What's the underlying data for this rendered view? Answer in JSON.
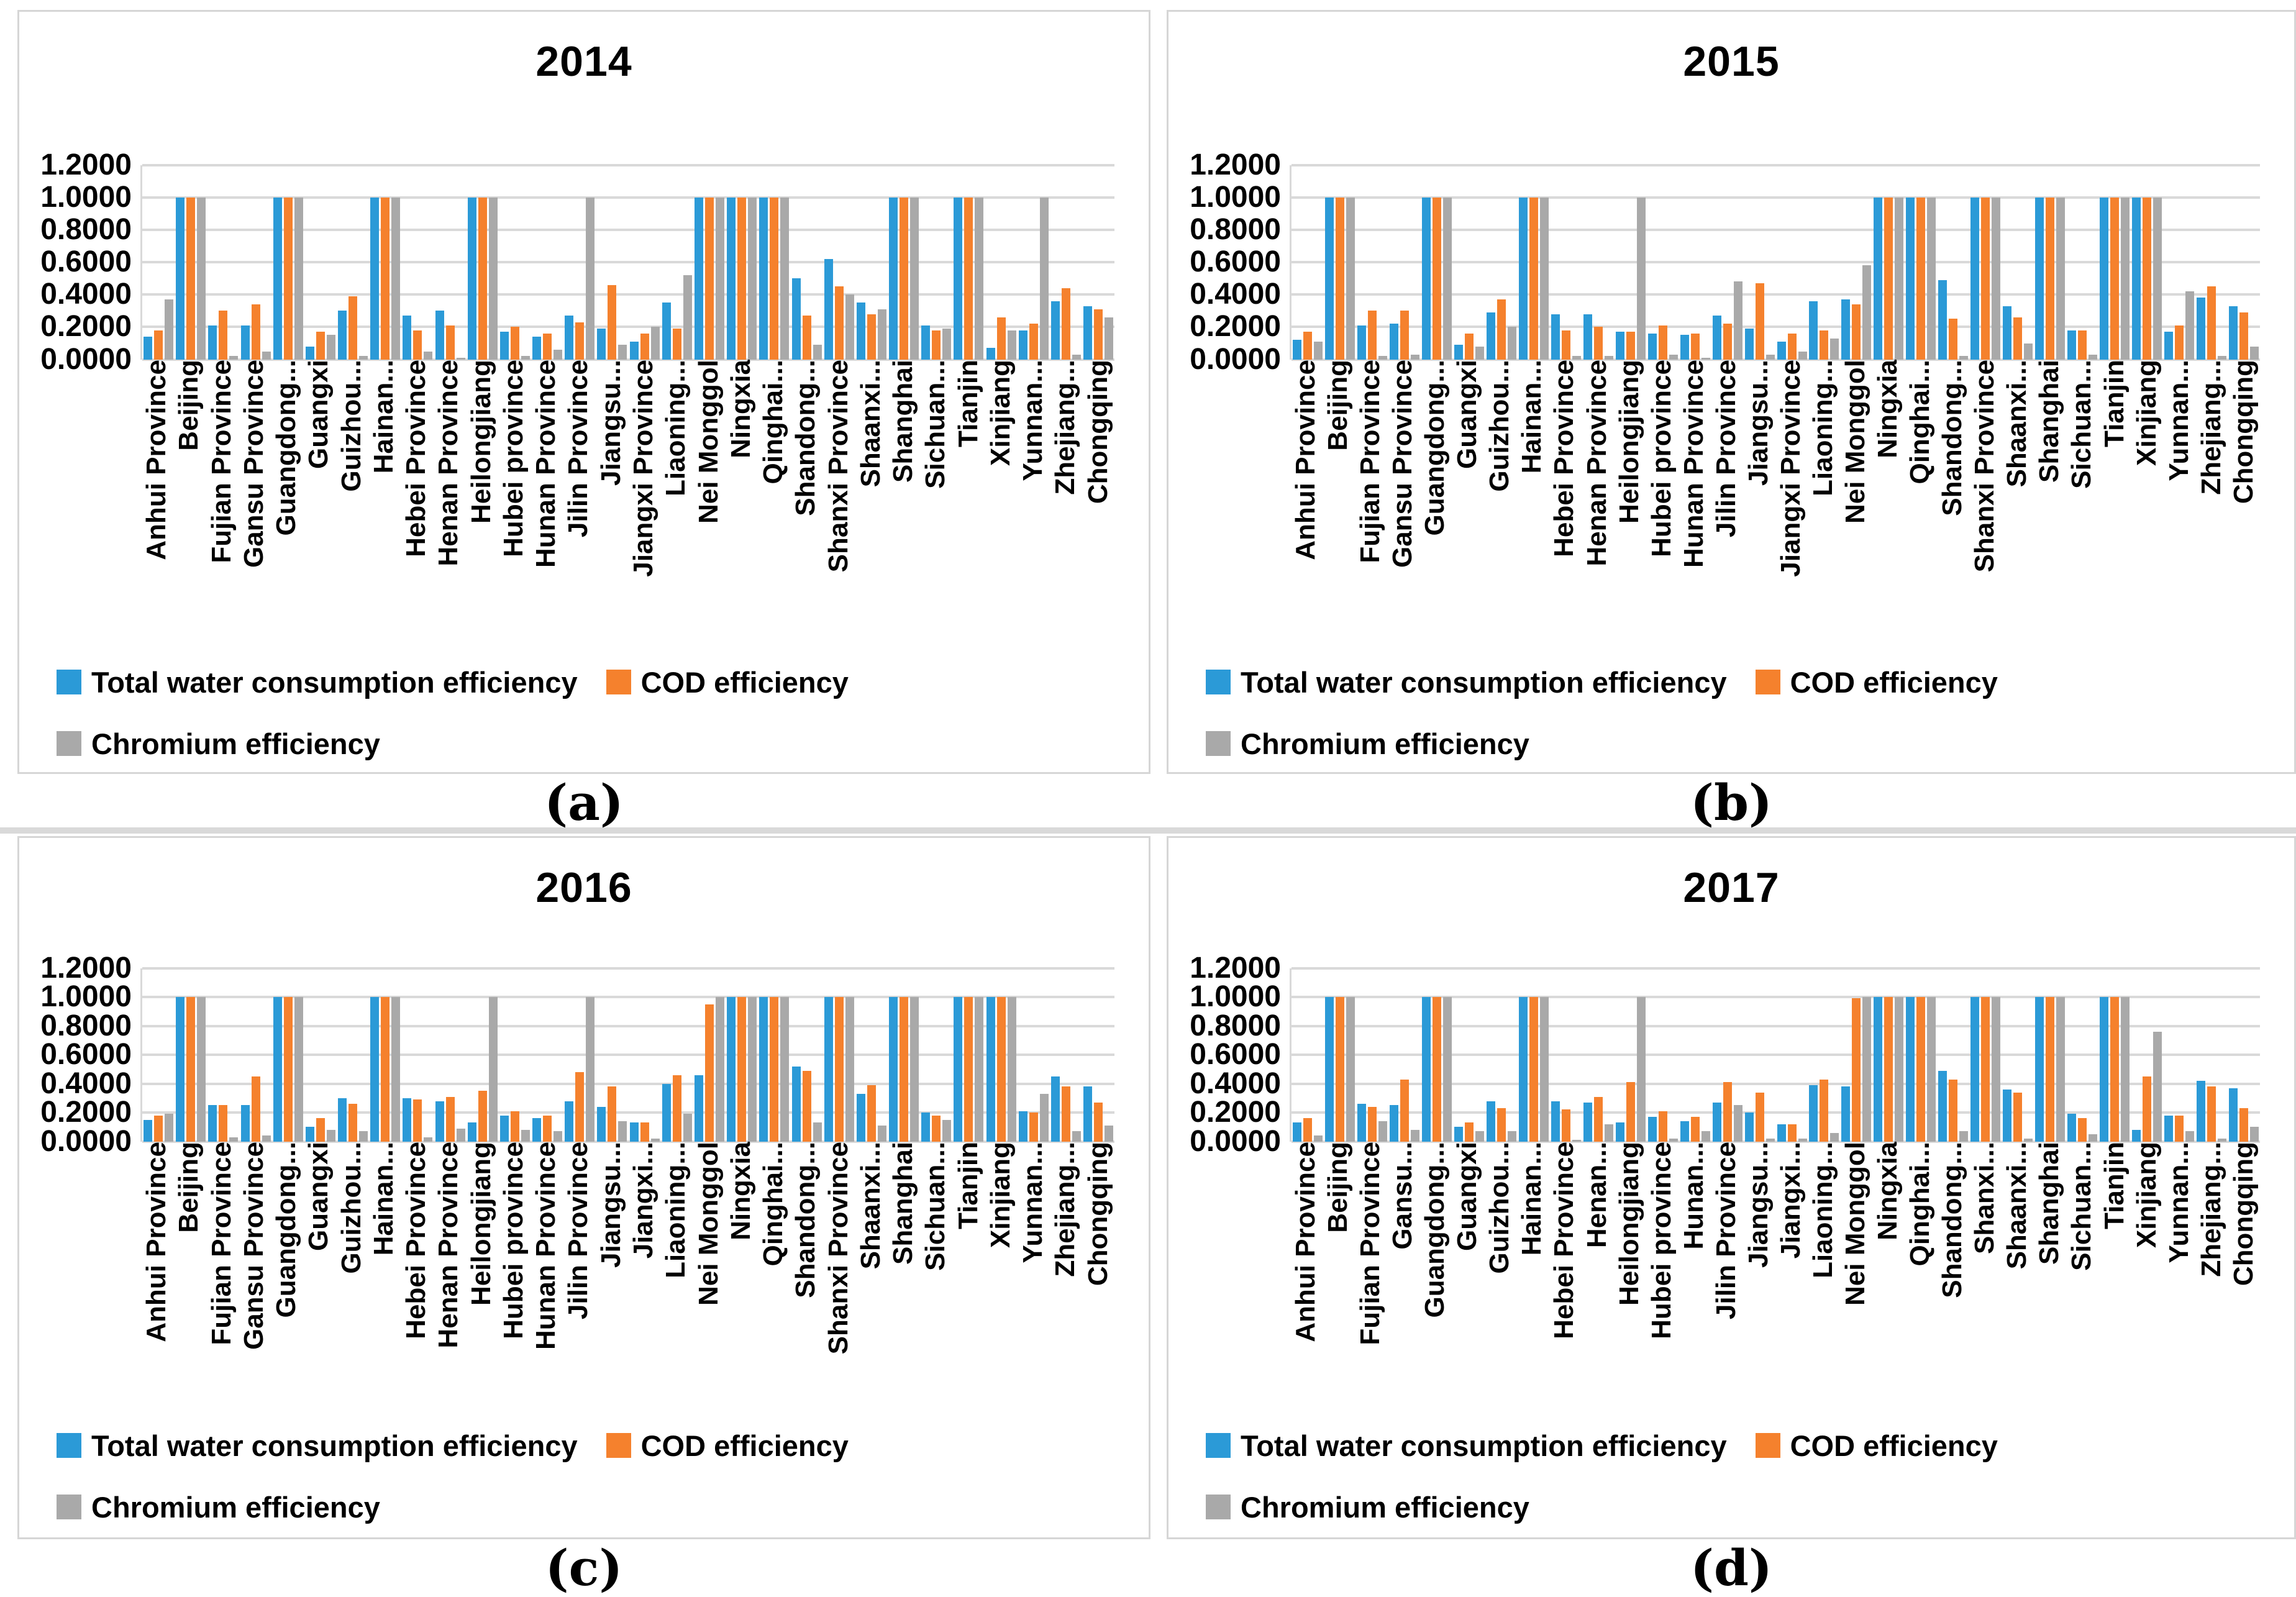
{
  "colors": {
    "water": "#2b9ad7",
    "cod": "#f5812d",
    "chromium": "#a9a9a9",
    "grid": "#d9d9d9"
  },
  "y_axis": {
    "ticks": [
      "1.2000",
      "1.0000",
      "0.8000",
      "0.6000",
      "0.4000",
      "0.2000",
      "0.0000"
    ],
    "values": [
      1.2,
      1.0,
      0.8,
      0.6,
      0.4,
      0.2,
      0.0
    ],
    "min": 0.0,
    "max": 1.2
  },
  "legend": {
    "position": "bottom-left",
    "items": [
      {
        "key": "water",
        "label": "Total water consumption efficiency"
      },
      {
        "key": "cod",
        "label": "COD efficiency"
      },
      {
        "key": "chromium",
        "label": "Chromium efficiency"
      }
    ]
  },
  "chart_data": [
    {
      "type": "bar",
      "title": "2014",
      "caption": "(a)",
      "ylim": [
        0,
        1.2
      ],
      "grid": true,
      "legend_position": "bottom-left",
      "categories": [
        "Anhui Province",
        "Beijing",
        "Fujian Province",
        "Gansu Province",
        "Guangdong...",
        "Guangxi",
        "Guizhou...",
        "Hainan...",
        "Hebei Province",
        "Henan Province",
        "Heilongjiang",
        "Hubei province",
        "Hunan Province",
        "Jilin Province",
        "Jiangsu...",
        "Jiangxi Province",
        "Liaoning...",
        "Nei Monggol",
        "Ningxia",
        "Qinghai...",
        "Shandong...",
        "Shanxi Province",
        "Shaanxi...",
        "Shanghai",
        "Sichuan...",
        "Tianjin",
        "Xinjiang",
        "Yunnan...",
        "Zhejiang...",
        "Chongqing"
      ],
      "series": [
        {
          "key": "water",
          "name": "Total water consumption efficiency",
          "values": [
            0.14,
            1.0,
            0.21,
            0.21,
            1.0,
            0.08,
            0.3,
            1.0,
            0.27,
            0.3,
            1.0,
            0.17,
            0.14,
            0.27,
            0.19,
            0.11,
            0.35,
            1.0,
            1.0,
            1.0,
            0.5,
            0.62,
            0.35,
            1.0,
            0.21,
            1.0,
            0.07,
            0.18,
            0.36,
            0.33
          ]
        },
        {
          "key": "cod",
          "name": "COD efficiency",
          "values": [
            0.18,
            1.0,
            0.3,
            0.34,
            1.0,
            0.17,
            0.39,
            1.0,
            0.18,
            0.21,
            1.0,
            0.2,
            0.16,
            0.23,
            0.46,
            0.16,
            0.19,
            1.0,
            1.0,
            1.0,
            0.27,
            0.45,
            0.28,
            1.0,
            0.18,
            1.0,
            0.26,
            0.22,
            0.44,
            0.31
          ]
        },
        {
          "key": "chromium",
          "name": "Chromium efficiency",
          "values": [
            0.37,
            1.0,
            0.02,
            0.05,
            1.0,
            0.15,
            0.02,
            1.0,
            0.05,
            0.01,
            1.0,
            0.02,
            0.06,
            1.0,
            0.09,
            0.2,
            0.52,
            1.0,
            1.0,
            1.0,
            0.09,
            0.4,
            0.31,
            1.0,
            0.19,
            1.0,
            0.18,
            1.0,
            0.03,
            0.26
          ]
        }
      ]
    },
    {
      "type": "bar",
      "title": "2015",
      "caption": "(b)",
      "ylim": [
        0,
        1.2
      ],
      "grid": true,
      "legend_position": "bottom-left",
      "categories": [
        "Anhui Province",
        "Beijing",
        "Fujian Province",
        "Gansu Province",
        "Guangdong...",
        "Guangxi",
        "Guizhou...",
        "Hainan...",
        "Hebei Province",
        "Henan Province",
        "Heilongjiang",
        "Hubei province",
        "Hunan Province",
        "Jilin Province",
        "Jiangsu...",
        "Jiangxi Province",
        "Liaoning...",
        "Nei Monggol",
        "Ningxia",
        "Qinghai...",
        "Shandong...",
        "Shanxi Province",
        "Shaanxi...",
        "Shanghai",
        "Sichuan...",
        "Tianjin",
        "Xinjiang",
        "Yunnan...",
        "Zhejiang...",
        "Chongqing"
      ],
      "series": [
        {
          "key": "water",
          "name": "Total water consumption efficiency",
          "values": [
            0.12,
            1.0,
            0.21,
            0.22,
            1.0,
            0.09,
            0.29,
            1.0,
            0.28,
            0.28,
            0.17,
            0.16,
            0.15,
            0.27,
            0.19,
            0.11,
            0.36,
            0.37,
            1.0,
            1.0,
            0.49,
            1.0,
            0.33,
            1.0,
            0.18,
            1.0,
            1.0,
            0.17,
            0.38,
            0.33
          ]
        },
        {
          "key": "cod",
          "name": "COD efficiency",
          "values": [
            0.17,
            1.0,
            0.3,
            0.3,
            1.0,
            0.16,
            0.37,
            1.0,
            0.18,
            0.2,
            0.17,
            0.21,
            0.16,
            0.22,
            0.47,
            0.16,
            0.18,
            0.34,
            1.0,
            1.0,
            0.25,
            1.0,
            0.26,
            1.0,
            0.18,
            1.0,
            1.0,
            0.21,
            0.45,
            0.29
          ]
        },
        {
          "key": "chromium",
          "name": "Chromium efficiency",
          "values": [
            0.11,
            1.0,
            0.02,
            0.03,
            1.0,
            0.08,
            0.2,
            1.0,
            0.02,
            0.02,
            1.0,
            0.03,
            0.01,
            0.48,
            0.03,
            0.05,
            0.13,
            0.58,
            1.0,
            1.0,
            0.02,
            1.0,
            0.1,
            1.0,
            0.03,
            1.0,
            1.0,
            0.42,
            0.02,
            0.08
          ]
        }
      ]
    },
    {
      "type": "bar",
      "title": "2016",
      "caption": "(c)",
      "ylim": [
        0,
        1.2
      ],
      "grid": true,
      "legend_position": "bottom-left",
      "categories": [
        "Anhui Province",
        "Beijing",
        "Fujian Province",
        "Gansu Province",
        "Guangdong...",
        "Guangxi",
        "Guizhou...",
        "Hainan...",
        "Hebei Province",
        "Henan Province",
        "Heilongjiang",
        "Hubei province",
        "Hunan Province",
        "Jilin Province",
        "Jiangsu...",
        "Jiangxi...",
        "Liaoning...",
        "Nei Monggol",
        "Ningxia",
        "Qinghai...",
        "Shandong...",
        "Shanxi Province",
        "Shaanxi...",
        "Shanghai",
        "Sichuan...",
        "Tianjin",
        "Xinjiang",
        "Yunnan...",
        "Zhejiang...",
        "Chongqing"
      ],
      "series": [
        {
          "key": "water",
          "name": "Total water consumption efficiency",
          "values": [
            0.15,
            1.0,
            0.25,
            0.25,
            1.0,
            0.1,
            0.3,
            1.0,
            0.3,
            0.28,
            0.13,
            0.18,
            0.16,
            0.28,
            0.24,
            0.13,
            0.4,
            0.46,
            1.0,
            1.0,
            0.52,
            1.0,
            0.33,
            1.0,
            0.2,
            1.0,
            1.0,
            0.21,
            0.45,
            0.38
          ]
        },
        {
          "key": "cod",
          "name": "COD efficiency",
          "values": [
            0.18,
            1.0,
            0.25,
            0.45,
            1.0,
            0.16,
            0.26,
            1.0,
            0.29,
            0.31,
            0.35,
            0.21,
            0.18,
            0.48,
            0.38,
            0.13,
            0.46,
            0.95,
            1.0,
            1.0,
            0.49,
            1.0,
            0.39,
            1.0,
            0.18,
            1.0,
            1.0,
            0.2,
            0.38,
            0.27
          ]
        },
        {
          "key": "chromium",
          "name": "Chromium efficiency",
          "values": [
            0.19,
            1.0,
            0.03,
            0.04,
            1.0,
            0.08,
            0.07,
            1.0,
            0.03,
            0.09,
            1.0,
            0.08,
            0.07,
            1.0,
            0.14,
            0.02,
            0.19,
            1.0,
            1.0,
            1.0,
            0.13,
            1.0,
            0.11,
            1.0,
            0.15,
            1.0,
            1.0,
            0.33,
            0.07,
            0.11
          ]
        }
      ]
    },
    {
      "type": "bar",
      "title": "2017",
      "caption": "(d)",
      "ylim": [
        0,
        1.2
      ],
      "grid": true,
      "legend_position": "bottom-left",
      "categories": [
        "Anhui Province",
        "Beijing",
        "Fujian Province",
        "Gansu...",
        "Guangdong...",
        "Guangxi",
        "Guizhou...",
        "Hainan...",
        "Hebei Province",
        "Henan...",
        "Heilongjiang",
        "Hubei province",
        "Hunan...",
        "Jilin Province",
        "Jiangsu...",
        "Jiangxi...",
        "Liaoning...",
        "Nei Monggol",
        "Ningxia",
        "Qinghai...",
        "Shandong...",
        "Shanxi...",
        "Shaanxi...",
        "Shanghai",
        "Sichuan...",
        "Tianjin",
        "Xinjiang",
        "Yunnan...",
        "Zhejiang...",
        "Chongqing"
      ],
      "series": [
        {
          "key": "water",
          "name": "Total water consumption efficiency",
          "values": [
            0.13,
            1.0,
            0.26,
            0.25,
            1.0,
            0.1,
            0.28,
            1.0,
            0.28,
            0.27,
            0.13,
            0.17,
            0.14,
            0.27,
            0.2,
            0.12,
            0.39,
            0.38,
            1.0,
            1.0,
            0.49,
            1.0,
            0.36,
            1.0,
            0.19,
            1.0,
            0.08,
            0.18,
            0.42,
            0.37
          ]
        },
        {
          "key": "cod",
          "name": "COD efficiency",
          "values": [
            0.16,
            1.0,
            0.24,
            0.43,
            1.0,
            0.13,
            0.23,
            1.0,
            0.22,
            0.31,
            0.41,
            0.21,
            0.17,
            0.41,
            0.34,
            0.12,
            0.43,
            0.99,
            1.0,
            1.0,
            0.43,
            1.0,
            0.34,
            1.0,
            0.16,
            1.0,
            0.45,
            0.18,
            0.38,
            0.23
          ]
        },
        {
          "key": "chromium",
          "name": "Chromium efficiency",
          "values": [
            0.04,
            1.0,
            0.14,
            0.08,
            1.0,
            0.07,
            0.07,
            1.0,
            0.01,
            0.12,
            1.0,
            0.02,
            0.07,
            0.25,
            0.02,
            0.02,
            0.06,
            1.0,
            1.0,
            1.0,
            0.07,
            1.0,
            0.02,
            1.0,
            0.05,
            1.0,
            0.76,
            0.07,
            0.02,
            0.1
          ]
        }
      ]
    }
  ]
}
